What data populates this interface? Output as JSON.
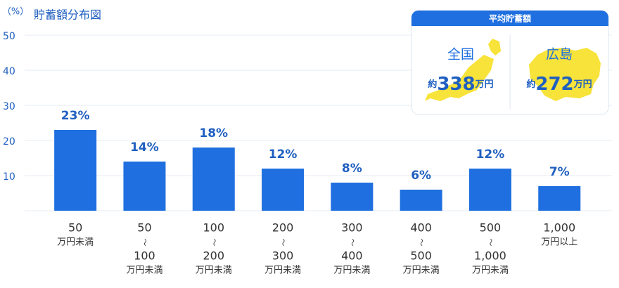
{
  "chart_data": {
    "type": "bar",
    "title": "貯蓄額分布図",
    "y_unit_label": "（%）",
    "categories": [
      [
        "50",
        "万円未満"
      ],
      [
        "50",
        "〜",
        "100",
        "万円未満"
      ],
      [
        "100",
        "〜",
        "200",
        "万円未満"
      ],
      [
        "200",
        "〜",
        "300",
        "万円未満"
      ],
      [
        "300",
        "〜",
        "400",
        "万円未満"
      ],
      [
        "400",
        "〜",
        "500",
        "万円未満"
      ],
      [
        "500",
        "〜",
        "1,000",
        "万円未満"
      ],
      [
        "1,000",
        "万円以上"
      ]
    ],
    "values": [
      23,
      14,
      18,
      12,
      8,
      6,
      12,
      7
    ],
    "value_labels": [
      "23%",
      "14%",
      "18%",
      "12%",
      "8%",
      "6%",
      "12%",
      "7%"
    ],
    "color": "#1f6fe0",
    "ylim": [
      0,
      50
    ],
    "yticks": [
      10,
      20,
      30,
      40,
      50
    ],
    "grid": true
  },
  "summary": {
    "title": "平均貯蓄額",
    "items": [
      {
        "label": "全国",
        "prefix": "約",
        "value": 338,
        "unit": "万円"
      },
      {
        "label": "広島",
        "prefix": "約",
        "value": 272,
        "unit": "万円"
      }
    ]
  }
}
